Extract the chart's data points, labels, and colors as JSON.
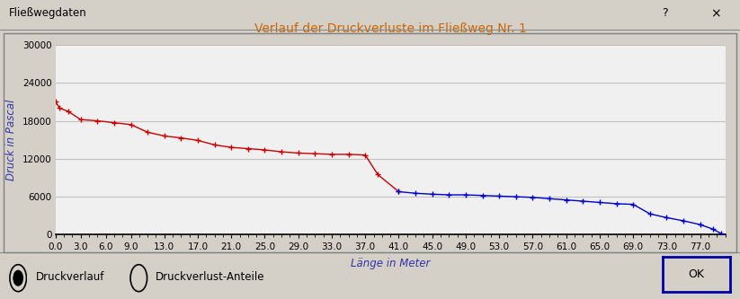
{
  "title": "Verlauf der Druckverluste im Fließweg Nr. 1",
  "xlabel": "Länge in Meter",
  "ylabel": "Druck in Pascal",
  "title_color": "#CC6600",
  "axis_label_color": "#3333AA",
  "tick_label_color": "#000000",
  "background_color": "#D4D0C8",
  "plot_bg_color": "#F0F0F0",
  "chart_border_color": "#808080",
  "grid_color": "#C0C0C0",
  "red_x": [
    0.0,
    0.5,
    1.5,
    3.0,
    5.0,
    7.0,
    9.0,
    11.0,
    13.0,
    15.0,
    17.0,
    19.0,
    21.0,
    23.0,
    25.0,
    27.0,
    29.0,
    31.0,
    33.0,
    35.0,
    37.0,
    38.5,
    41.0
  ],
  "red_y": [
    21000,
    20000,
    19500,
    18200,
    18000,
    17700,
    17400,
    16200,
    15600,
    15300,
    14900,
    14200,
    13800,
    13600,
    13400,
    13100,
    12900,
    12800,
    12700,
    12700,
    12600,
    9500,
    6800
  ],
  "blue_x": [
    41.0,
    43.0,
    45.0,
    47.0,
    49.0,
    51.0,
    53.0,
    55.0,
    57.0,
    59.0,
    61.0,
    63.0,
    65.0,
    67.0,
    69.0,
    71.0,
    73.0,
    75.0,
    77.0,
    78.5,
    79.5
  ],
  "blue_y": [
    6800,
    6550,
    6400,
    6300,
    6300,
    6200,
    6100,
    6000,
    5900,
    5700,
    5500,
    5300,
    5100,
    4900,
    4800,
    3300,
    2700,
    2200,
    1600,
    900,
    200
  ],
  "red_color": "#CC0000",
  "blue_color": "#0000CC",
  "ylim": [
    0,
    30000
  ],
  "xlim": [
    0,
    80
  ],
  "yticks": [
    0,
    6000,
    12000,
    18000,
    24000,
    30000
  ],
  "xtick_labels": [
    "0.0",
    "3.0",
    "6.0",
    "9.0",
    "13.0",
    "17.0",
    "21.0",
    "25.0",
    "29.0",
    "33.0",
    "37.0",
    "41.0",
    "45.0",
    "49.0",
    "53.0",
    "57.0",
    "61.0",
    "65.0",
    "69.0",
    "73.0",
    "77.0"
  ],
  "xtick_positions": [
    0.0,
    3.0,
    6.0,
    9.0,
    13.0,
    17.0,
    21.0,
    25.0,
    29.0,
    33.0,
    37.0,
    41.0,
    45.0,
    49.0,
    53.0,
    57.0,
    61.0,
    65.0,
    69.0,
    73.0,
    77.0
  ],
  "dialog_title": "Fließwegdaten",
  "radio1_label": "Druckverlauf",
  "radio2_label": "Druckverlust-Anteile",
  "ok_label": "OK",
  "marker_size": 5,
  "line_width": 1.0
}
